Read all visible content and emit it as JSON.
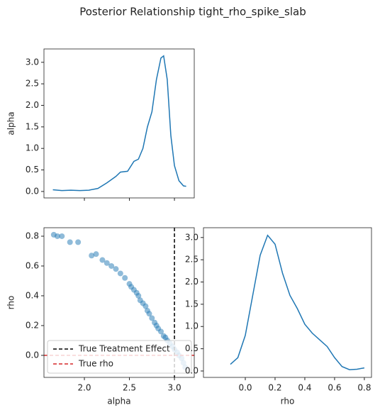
{
  "title": "Posterior Relationship tight_rho_spike_slab",
  "chart_data": [
    {
      "type": "line",
      "ylabel": "alpha",
      "show_xtick_labels": false,
      "xlim": [
        1.551,
        3.22
      ],
      "ylim": [
        -0.15,
        3.31
      ],
      "xticks": [
        {
          "value": 2.0,
          "label": "2.0"
        },
        2.5,
        {
          "value": 3.0,
          "label": "3.0"
        }
      ],
      "yticks": [
        {
          "value": 0,
          "label": "0.0"
        },
        0.5,
        {
          "value": 1,
          "label": "1.0"
        },
        1.5,
        {
          "value": 2,
          "label": "2.0"
        },
        2.5,
        {
          "value": 3,
          "label": "3.0"
        }
      ],
      "x": [
        1.65,
        1.75,
        1.85,
        1.95,
        2.05,
        2.15,
        2.25,
        2.35,
        2.4,
        2.48,
        2.55,
        2.6,
        2.65,
        2.7,
        2.75,
        2.8,
        2.85,
        2.88,
        2.92,
        2.96,
        3.0,
        3.05,
        3.1,
        3.13
      ],
      "series": [
        {
          "color": "#1f77b4",
          "values": [
            0.04,
            0.02,
            0.03,
            0.02,
            0.03,
            0.07,
            0.2,
            0.35,
            0.45,
            0.47,
            0.7,
            0.75,
            1.0,
            1.5,
            1.85,
            2.6,
            3.1,
            3.15,
            2.6,
            1.3,
            0.6,
            0.25,
            0.13,
            0.12
          ]
        }
      ]
    },
    {
      "type": "scatter",
      "xlabel": "alpha",
      "ylabel": "rho",
      "color": "#1f77b4",
      "xlim": [
        1.551,
        3.22
      ],
      "ylim": [
        -0.148,
        0.857
      ],
      "xticks": [
        {
          "value": 2.0,
          "label": "2.0"
        },
        2.5,
        {
          "value": 3.0,
          "label": "3.0"
        }
      ],
      "yticks": [
        {
          "value": 0,
          "label": "0.0"
        },
        0.2,
        0.4,
        0.6,
        0.8
      ],
      "x": [
        1.66,
        1.7,
        1.75,
        1.84,
        1.93,
        2.08,
        2.13,
        2.2,
        2.25,
        2.3,
        2.35,
        2.4,
        2.45,
        2.5,
        2.52,
        2.55,
        2.58,
        2.6,
        2.62,
        2.65,
        2.68,
        2.7,
        2.72,
        2.75,
        2.78,
        2.8,
        2.82,
        2.85,
        2.88,
        2.9,
        2.92,
        2.95,
        2.98,
        3.0,
        3.03,
        3.05,
        3.08,
        3.1,
        3.12
      ],
      "y": [
        0.81,
        0.8,
        0.8,
        0.76,
        0.76,
        0.67,
        0.68,
        0.64,
        0.62,
        0.6,
        0.58,
        0.55,
        0.52,
        0.48,
        0.46,
        0.44,
        0.42,
        0.4,
        0.37,
        0.35,
        0.33,
        0.3,
        0.28,
        0.25,
        0.22,
        0.2,
        0.18,
        0.16,
        0.13,
        0.12,
        0.1,
        0.08,
        0.06,
        0.04,
        0.02,
        0.0,
        -0.02,
        -0.05,
        -0.08
      ],
      "reference_lines": [
        {
          "name": "True Treatment Effect",
          "orientation": "vertical",
          "value": 3.0,
          "color": "#000000"
        },
        {
          "name": "True rho",
          "orientation": "horizontal",
          "value": 0,
          "color": "#d62728"
        }
      ]
    },
    {
      "type": "line",
      "xlabel": "rho",
      "xlim": [
        -0.281,
        0.848
      ],
      "ylim": [
        -0.144,
        3.22
      ],
      "xticks": [
        {
          "value": 0,
          "label": "0.0"
        },
        0.2,
        0.4,
        0.6,
        0.8
      ],
      "yticks": [
        {
          "value": 0,
          "label": "0.0"
        },
        0.5,
        {
          "value": 1,
          "label": "1.0"
        },
        1.5,
        {
          "value": 2,
          "label": "2.0"
        },
        2.5,
        {
          "value": 3,
          "label": "3.0"
        }
      ],
      "x": [
        -0.1,
        -0.05,
        0.0,
        0.05,
        0.1,
        0.15,
        0.2,
        0.25,
        0.3,
        0.35,
        0.4,
        0.45,
        0.5,
        0.55,
        0.6,
        0.65,
        0.7,
        0.75,
        0.8
      ],
      "series": [
        {
          "color": "#1f77b4",
          "values": [
            0.15,
            0.3,
            0.8,
            1.7,
            2.6,
            3.05,
            2.85,
            2.2,
            1.7,
            1.4,
            1.05,
            0.85,
            0.7,
            0.55,
            0.3,
            0.1,
            0.03,
            0.04,
            0.07
          ]
        }
      ]
    }
  ]
}
